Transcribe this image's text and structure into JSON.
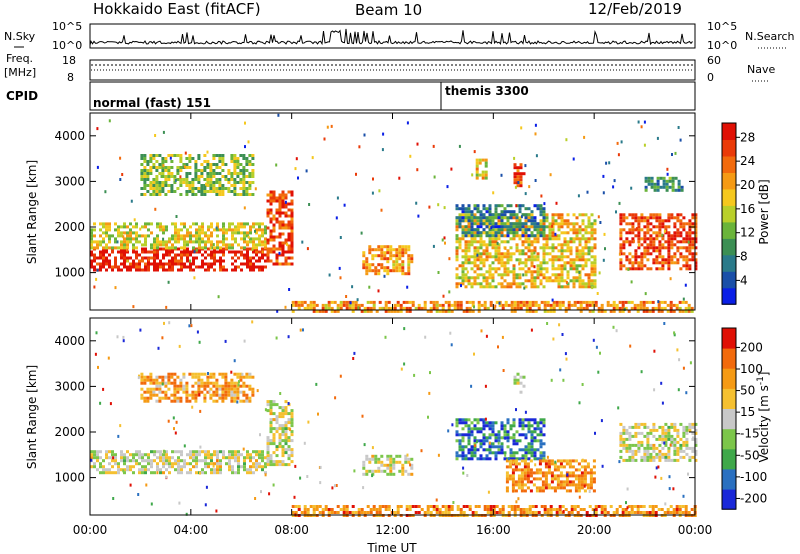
{
  "header": {
    "station": "Hokkaido East (fitACF)",
    "beam": "Beam 10",
    "date": "12/Feb/2019"
  },
  "strip": {
    "nsky_label": "N.Sky",
    "nsky_ticks": [
      "10^5",
      "10^0"
    ],
    "nsearch_label": "N.Search",
    "nsearch_ticks": [
      "10^5",
      "10^0"
    ],
    "freq_label": "Freq.",
    "freq_unit": "[MHz]",
    "freq_ticks": [
      "18",
      "8"
    ],
    "nave_label": "Nave",
    "nave_ticks": [
      "60",
      "0"
    ],
    "cpid_label": "CPID",
    "cpid_segments": [
      {
        "label": "normal (fast) 151",
        "start_hour": 0
      },
      {
        "label": "themis 3300",
        "start_hour": 14
      }
    ]
  },
  "chart_data": [
    {
      "type": "heatmap",
      "quantity": "Power",
      "ylabel": "Slant Range [km]",
      "ylim": [
        180,
        4500
      ],
      "yticks": [
        1000,
        2000,
        3000,
        4000
      ],
      "xlim": [
        0,
        24
      ],
      "colorbar_label": "Power [dB]",
      "colorbar_ticks": [
        "4",
        "8",
        "12",
        "16",
        "20",
        "24",
        "28"
      ],
      "colorbar_colors": [
        "#0a1fe6",
        "#1a4fa8",
        "#2a7a8a",
        "#3c8f54",
        "#6ab43a",
        "#b9cf2a",
        "#f5c81e",
        "#f59a14",
        "#f26a0c",
        "#ea3a08",
        "#e01005"
      ],
      "regions": [
        {
          "t0": 0.0,
          "t1": 7.0,
          "r0": 1050,
          "r1": 1550,
          "level": 0.95
        },
        {
          "t0": 0.0,
          "t1": 7.0,
          "r0": 1550,
          "r1": 2100,
          "level": 0.55
        },
        {
          "t0": 7.0,
          "t1": 8.0,
          "r0": 1200,
          "r1": 2800,
          "level": 0.85
        },
        {
          "t0": 2.0,
          "t1": 6.5,
          "r0": 2700,
          "r1": 3600,
          "level": 0.45
        },
        {
          "t0": 10.8,
          "t1": 12.8,
          "r0": 1000,
          "r1": 1600,
          "level": 0.7
        },
        {
          "t0": 14.5,
          "t1": 20.0,
          "r0": 700,
          "r1": 2300,
          "level": 0.6
        },
        {
          "t0": 14.5,
          "t1": 18.0,
          "r0": 1800,
          "r1": 2500,
          "level": 0.25
        },
        {
          "t0": 16.8,
          "t1": 17.2,
          "r0": 2900,
          "r1": 3400,
          "level": 0.85
        },
        {
          "t0": 15.3,
          "t1": 15.7,
          "r0": 3100,
          "r1": 3500,
          "level": 0.6
        },
        {
          "t0": 21.0,
          "t1": 24.0,
          "r0": 1100,
          "r1": 2300,
          "level": 0.85
        },
        {
          "t0": 22.0,
          "t1": 23.5,
          "r0": 2800,
          "r1": 3100,
          "level": 0.3
        },
        {
          "t0": 8.0,
          "t1": 24.0,
          "r0": 180,
          "r1": 380,
          "level": 0.7
        }
      ]
    },
    {
      "type": "heatmap",
      "quantity": "Velocity",
      "ylabel": "Slant Range [km]",
      "ylim": [
        180,
        4500
      ],
      "yticks": [
        1000,
        2000,
        3000,
        4000
      ],
      "xlim": [
        0,
        24
      ],
      "xticks": [
        "00:00",
        "04:00",
        "08:00",
        "12:00",
        "16:00",
        "20:00",
        "00:00"
      ],
      "xlabel": "Time UT",
      "colorbar_label": "Velocity [m s^-1]",
      "colorbar_ticks": [
        "200",
        "100",
        "50",
        "15",
        "-15",
        "-50",
        "-100",
        "-200"
      ],
      "colorbar_colors": [
        "#1a28d8",
        "#2a70c0",
        "#3fa84a",
        "#7cc64a",
        "#c8c8c8",
        "#f5c030",
        "#f59a14",
        "#f26a0c",
        "#e01005"
      ],
      "regions": [
        {
          "t0": 0.0,
          "t1": 7.0,
          "r0": 1100,
          "r1": 1600,
          "level": 0.5
        },
        {
          "t0": 7.0,
          "t1": 8.0,
          "r0": 1300,
          "r1": 2700,
          "level": 0.5
        },
        {
          "t0": 2.0,
          "t1": 6.5,
          "r0": 2700,
          "r1": 3300,
          "level": 0.7
        },
        {
          "t0": 10.8,
          "t1": 12.8,
          "r0": 1100,
          "r1": 1500,
          "level": 0.5
        },
        {
          "t0": 14.5,
          "t1": 18.0,
          "r0": 1400,
          "r1": 2300,
          "level": 0.2
        },
        {
          "t0": 16.5,
          "t1": 20.0,
          "r0": 700,
          "r1": 1400,
          "level": 0.75
        },
        {
          "t0": 16.8,
          "t1": 17.2,
          "r0": 2900,
          "r1": 3300,
          "level": 0.5
        },
        {
          "t0": 21.0,
          "t1": 24.0,
          "r0": 1400,
          "r1": 2200,
          "level": 0.5
        },
        {
          "t0": 8.0,
          "t1": 24.0,
          "r0": 180,
          "r1": 400,
          "level": 0.75
        }
      ]
    }
  ]
}
